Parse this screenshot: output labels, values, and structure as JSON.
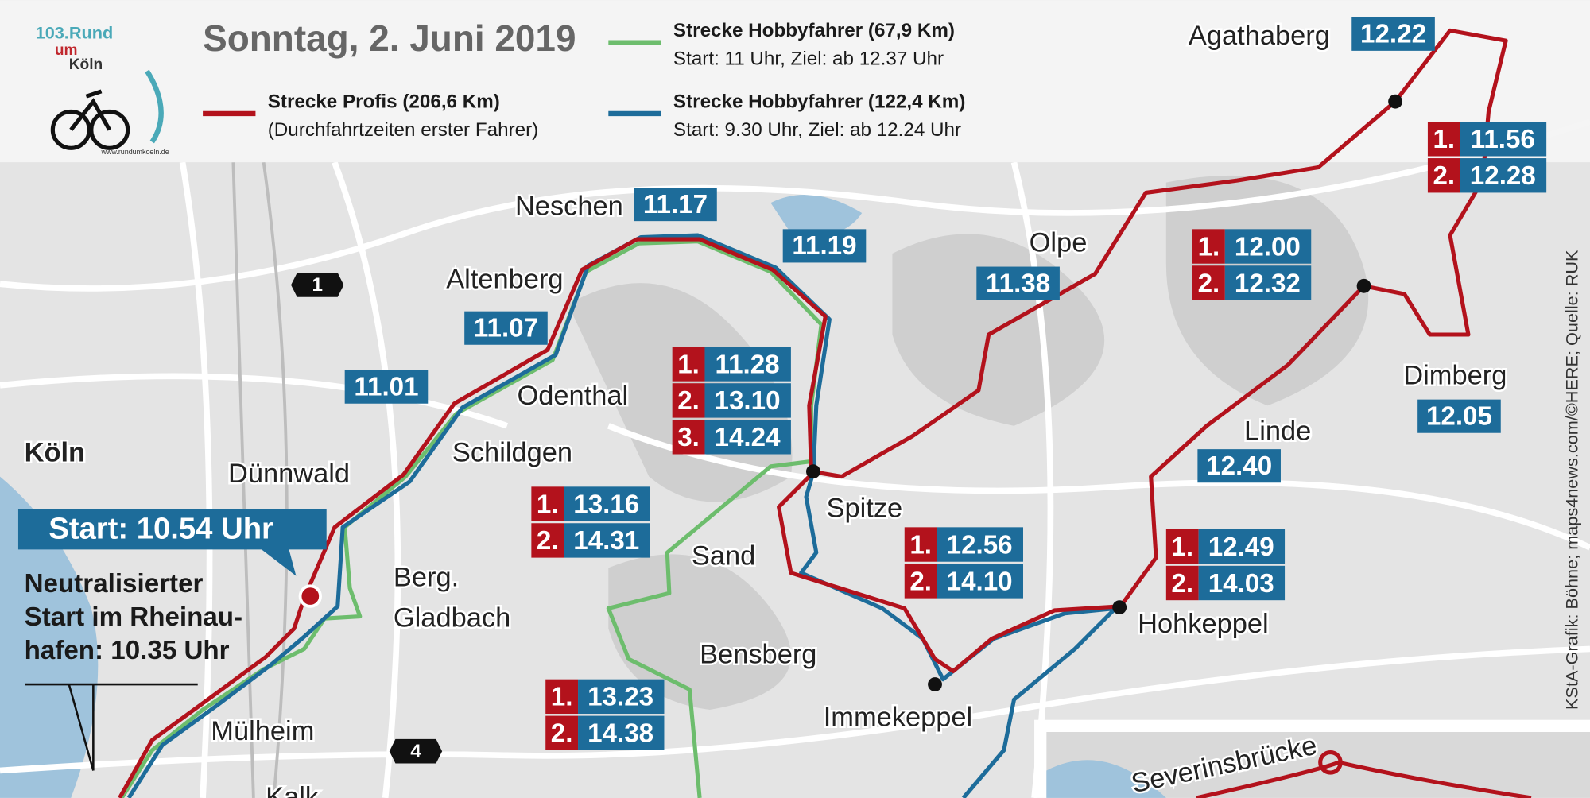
{
  "logo": {
    "line1": "103.Rund",
    "line2": "um",
    "line3": "Köln",
    "url": "www.rundumkoeln.de"
  },
  "header": {
    "date": "Sonntag, 2. Juni 2019"
  },
  "legend": [
    {
      "title": "Strecke Profis (206,6 Km)",
      "subtitle": "(Durchfahrtzeiten erster Fahrer)",
      "color": "#b3121c"
    },
    {
      "title": "Strecke Hobbyfahrer (67,9 Km)",
      "subtitle": "Start: 11 Uhr, Ziel: ab 12.37 Uhr",
      "color": "#6dbd6d"
    },
    {
      "title": "Strecke Hobbyfahrer (122,4 Km)",
      "subtitle": "Start: 9.30 Uhr, Ziel: ab 12.24 Uhr",
      "color": "#1d6c9a"
    }
  ],
  "city": "Köln",
  "places": [
    "Dünnwald",
    "Berg.",
    "Gladbach",
    "Mülheim",
    "Kalk",
    "Neschen",
    "Altenberg",
    "Odenthal",
    "Schildgen",
    "Sand",
    "Bensberg",
    "Spitze",
    "Immekeppel",
    "Olpe",
    "Agathaberg",
    "Linde",
    "Dimberg",
    "Hohkeppel"
  ],
  "times": [
    "12.22",
    "11.17",
    "11.19",
    "11.38",
    "11.07",
    "11.01",
    "12.05",
    "12.40"
  ],
  "lap_times": [
    [
      {
        "lap": "1.",
        "time": "11.56"
      },
      {
        "lap": "2.",
        "time": "12.28"
      }
    ],
    [
      {
        "lap": "1.",
        "time": "12.00"
      },
      {
        "lap": "2.",
        "time": "12.32"
      }
    ],
    [
      {
        "lap": "1.",
        "time": "11.28"
      },
      {
        "lap": "2.",
        "time": "13.10"
      },
      {
        "lap": "3.",
        "time": "14.24"
      }
    ],
    [
      {
        "lap": "1.",
        "time": "13.16"
      },
      {
        "lap": "2.",
        "time": "14.31"
      }
    ],
    [
      {
        "lap": "1.",
        "time": "12.56"
      },
      {
        "lap": "2.",
        "time": "14.10"
      }
    ],
    [
      {
        "lap": "1.",
        "time": "12.49"
      },
      {
        "lap": "2.",
        "time": "14.03"
      }
    ],
    [
      {
        "lap": "1.",
        "time": "13.23"
      },
      {
        "lap": "2.",
        "time": "14.38"
      }
    ]
  ],
  "roads": [
    "1",
    "4"
  ],
  "start": {
    "label": "Start: 10.54 Uhr",
    "note": [
      "Neutralisierter",
      "Start im Rheinau-",
      "hafen: 10.35 Uhr"
    ]
  },
  "inset": {
    "label": "Severinsbrücke"
  },
  "credit": "KStA-Grafik: Böhne; maps4news.com/©HERE; Quelle: RUK"
}
